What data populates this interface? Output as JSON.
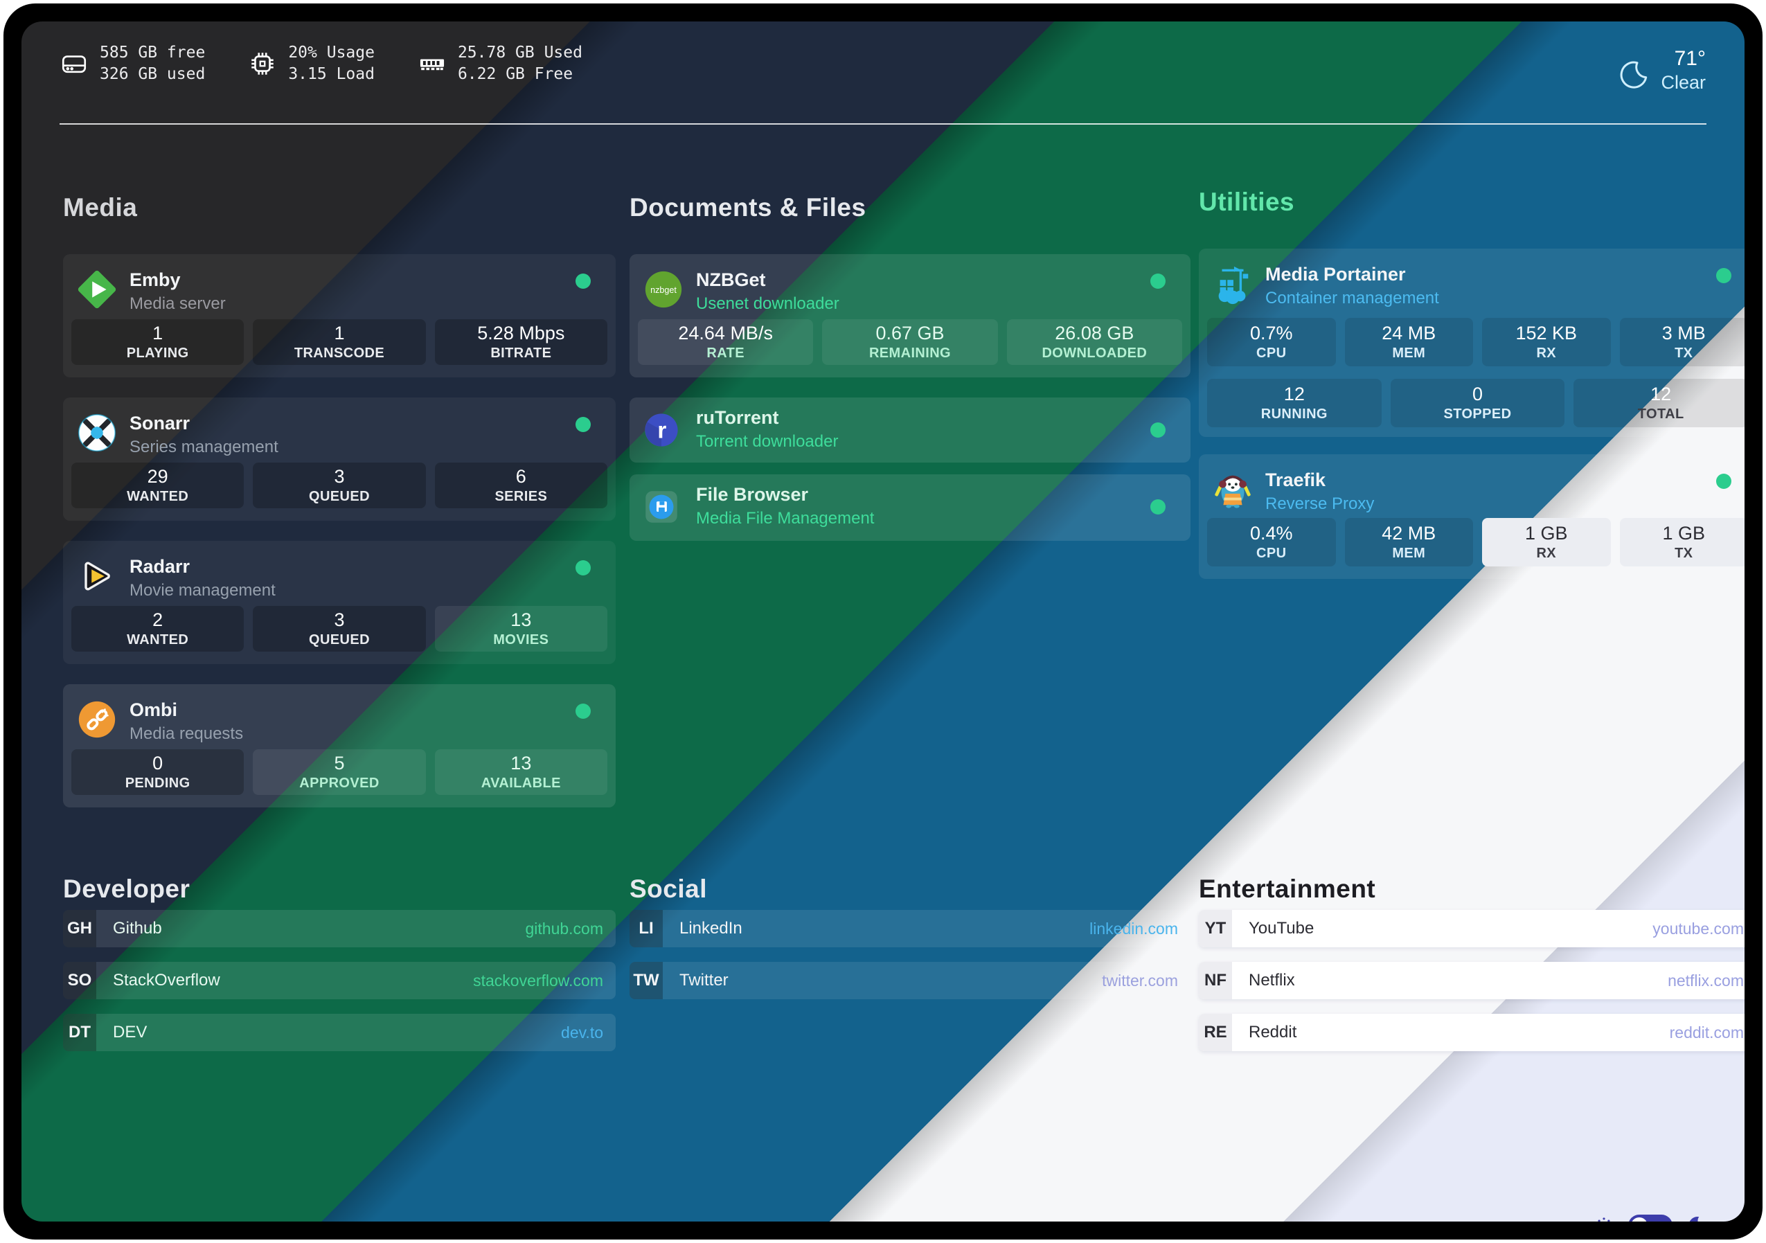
{
  "header": {
    "widgets": [
      {
        "icon": "disk-icon",
        "line1": "585 GB free",
        "line2": "326 GB used"
      },
      {
        "icon": "cpu-icon",
        "line1": "20% Usage",
        "line2": "3.15 Load"
      },
      {
        "icon": "memory-icon",
        "line1": "25.78 GB Used",
        "line2": "6.22 GB Free"
      }
    ],
    "weather": {
      "icon": "crescent-moon-icon",
      "temperature": "71°",
      "condition": "Clear"
    }
  },
  "service_groups": [
    {
      "name": "Media",
      "services": [
        {
          "name": "Emby",
          "description": "Media server",
          "icon": "emby-icon",
          "status": "online",
          "stats": [
            {
              "value": "1",
              "label": "PLAYING"
            },
            {
              "value": "1",
              "label": "TRANSCODE"
            },
            {
              "value": "5.28 Mbps",
              "label": "BITRATE"
            }
          ]
        },
        {
          "name": "Sonarr",
          "description": "Series management",
          "icon": "sonarr-icon",
          "status": "online",
          "stats": [
            {
              "value": "29",
              "label": "WANTED"
            },
            {
              "value": "3",
              "label": "QUEUED"
            },
            {
              "value": "6",
              "label": "SERIES"
            }
          ]
        },
        {
          "name": "Radarr",
          "description": "Movie management",
          "icon": "radarr-icon",
          "status": "online",
          "stats": [
            {
              "value": "2",
              "label": "WANTED"
            },
            {
              "value": "3",
              "label": "QUEUED"
            },
            {
              "value": "13",
              "label": "MOVIES"
            }
          ]
        },
        {
          "name": "Ombi",
          "description": "Media requests",
          "icon": "ombi-icon",
          "status": "online",
          "stats": [
            {
              "value": "0",
              "label": "PENDING"
            },
            {
              "value": "5",
              "label": "APPROVED"
            },
            {
              "value": "13",
              "label": "AVAILABLE"
            }
          ]
        }
      ]
    },
    {
      "name": "Documents & Files",
      "services": [
        {
          "name": "NZBGet",
          "description": "Usenet downloader",
          "icon": "nzbget-icon",
          "status": "online",
          "stats": [
            {
              "value": "24.64 MB/s",
              "label": "RATE"
            },
            {
              "value": "0.67 GB",
              "label": "REMAINING"
            },
            {
              "value": "26.08 GB",
              "label": "DOWNLOADED"
            }
          ]
        },
        {
          "name": "ruTorrent",
          "description": "Torrent downloader",
          "icon": "rutorrent-icon",
          "status": "online",
          "stats": []
        },
        {
          "name": "File Browser",
          "description": "Media File Management",
          "icon": "filebrowser-icon",
          "status": "online",
          "stats": []
        }
      ]
    },
    {
      "name": "Utilities",
      "services": [
        {
          "name": "Media Portainer",
          "description": "Container management",
          "icon": "portainer-icon",
          "status": "online",
          "stats": [
            {
              "value": "0.7%",
              "label": "CPU"
            },
            {
              "value": "24 MB",
              "label": "MEM"
            },
            {
              "value": "152 KB",
              "label": "RX"
            },
            {
              "value": "3 MB",
              "label": "TX"
            },
            {
              "value": "12",
              "label": "RUNNING"
            },
            {
              "value": "0",
              "label": "STOPPED"
            },
            {
              "value": "12",
              "label": "TOTAL"
            }
          ]
        },
        {
          "name": "Traefik",
          "description": "Reverse Proxy",
          "icon": "traefik-icon",
          "status": "online",
          "stats": [
            {
              "value": "0.4%",
              "label": "CPU"
            },
            {
              "value": "42 MB",
              "label": "MEM"
            },
            {
              "value": "1 GB",
              "label": "RX"
            },
            {
              "value": "1 GB",
              "label": "TX"
            }
          ]
        }
      ]
    }
  ],
  "bookmark_groups": [
    {
      "name": "Developer",
      "bookmarks": [
        {
          "abbr": "GH",
          "name": "Github",
          "url": "github.com"
        },
        {
          "abbr": "SO",
          "name": "StackOverflow",
          "url": "stackoverflow.com"
        },
        {
          "abbr": "DT",
          "name": "DEV",
          "url": "dev.to"
        }
      ]
    },
    {
      "name": "Social",
      "bookmarks": [
        {
          "abbr": "LI",
          "name": "LinkedIn",
          "url": "linkedin.com"
        },
        {
          "abbr": "TW",
          "name": "Twitter",
          "url": "twitter.com"
        }
      ]
    },
    {
      "name": "Entertainment",
      "bookmarks": [
        {
          "abbr": "YT",
          "name": "YouTube",
          "url": "youtube.com"
        },
        {
          "abbr": "NF",
          "name": "Netflix",
          "url": "netflix.com"
        },
        {
          "abbr": "RE",
          "name": "Reddit",
          "url": "reddit.com"
        }
      ]
    }
  ],
  "footer": {
    "icons": [
      "sun-icon",
      "theme-toggle",
      "moon-icon"
    ]
  },
  "colors": {
    "band_charcoal": "#272729",
    "band_navy": "#1f2a3e",
    "band_green": "#0d6a48",
    "band_blue": "#13628d",
    "band_white": "#f6f7f9",
    "band_lavender": "#e7eaf8",
    "status_dot": "#2bcd8e",
    "accent_indigo": "#3d3dab"
  }
}
